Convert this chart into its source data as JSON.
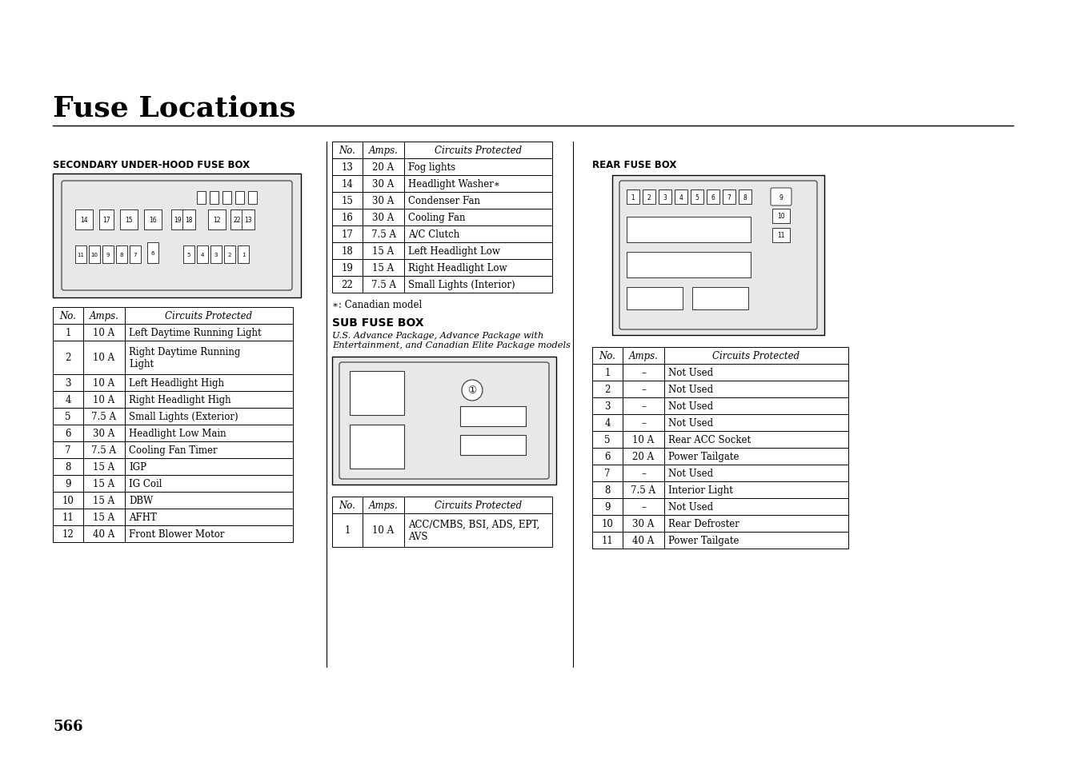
{
  "title": "Fuse Locations",
  "bg_color": "#ffffff",
  "page_number": "566",
  "left_section_title": "SECONDARY UNDER-HOOD FUSE BOX",
  "left_table_header": [
    "No.",
    "Amps.",
    "Circuits Protected"
  ],
  "left_table_rows": [
    [
      "1",
      "10 A",
      "Left Daytime Running Light"
    ],
    [
      "2",
      "10 A",
      "Right Daytime Running\nLight"
    ],
    [
      "3",
      "10 A",
      "Left Headlight High"
    ],
    [
      "4",
      "10 A",
      "Right Headlight High"
    ],
    [
      "5",
      "7.5 A",
      "Small Lights (Exterior)"
    ],
    [
      "6",
      "30 A",
      "Headlight Low Main"
    ],
    [
      "7",
      "7.5 A",
      "Cooling Fan Timer"
    ],
    [
      "8",
      "15 A",
      "IGP"
    ],
    [
      "9",
      "15 A",
      "IG Coil"
    ],
    [
      "10",
      "15 A",
      "DBW"
    ],
    [
      "11",
      "15 A",
      "AFHT"
    ],
    [
      "12",
      "40 A",
      "Front Blower Motor"
    ]
  ],
  "middle_table_header": [
    "No.",
    "Amps.",
    "Circuits Protected"
  ],
  "middle_table_rows": [
    [
      "13",
      "20 A",
      "Fog lights"
    ],
    [
      "14",
      "30 A",
      "Headlight Washer∗"
    ],
    [
      "15",
      "30 A",
      "Condenser Fan"
    ],
    [
      "16",
      "30 A",
      "Cooling Fan"
    ],
    [
      "17",
      "7.5 A",
      "A/C Clutch"
    ],
    [
      "18",
      "15 A",
      "Left Headlight Low"
    ],
    [
      "19",
      "15 A",
      "Right Headlight Low"
    ],
    [
      "22",
      "7.5 A",
      "Small Lights (Interior)"
    ]
  ],
  "canadian_note": "∗: Canadian model",
  "sub_fuse_title": "SUB FUSE BOX",
  "sub_fuse_line1": "U.S. Advance Package, Advance Package with",
  "sub_fuse_line2": "Entertainment, and Canadian Elite Package models",
  "sub_table_header": [
    "No.",
    "Amps.",
    "Circuits Protected"
  ],
  "sub_table_rows": [
    [
      "1",
      "10 A",
      "ACC/CMBS, BSI, ADS, EPT,\nAVS"
    ]
  ],
  "right_section_title": "REAR FUSE BOX",
  "right_table_header": [
    "No.",
    "Amps.",
    "Circuits Protected"
  ],
  "right_table_rows": [
    [
      "1",
      "–",
      "Not Used"
    ],
    [
      "2",
      "–",
      "Not Used"
    ],
    [
      "3",
      "–",
      "Not Used"
    ],
    [
      "4",
      "–",
      "Not Used"
    ],
    [
      "5",
      "10 A",
      "Rear ACC Socket"
    ],
    [
      "6",
      "20 A",
      "Power Tailgate"
    ],
    [
      "7",
      "–",
      "Not Used"
    ],
    [
      "8",
      "7.5 A",
      "Interior Light"
    ],
    [
      "9",
      "–",
      "Not Used"
    ],
    [
      "10",
      "30 A",
      "Rear Defroster"
    ],
    [
      "11",
      "40 A",
      "Power Tailgate"
    ]
  ]
}
